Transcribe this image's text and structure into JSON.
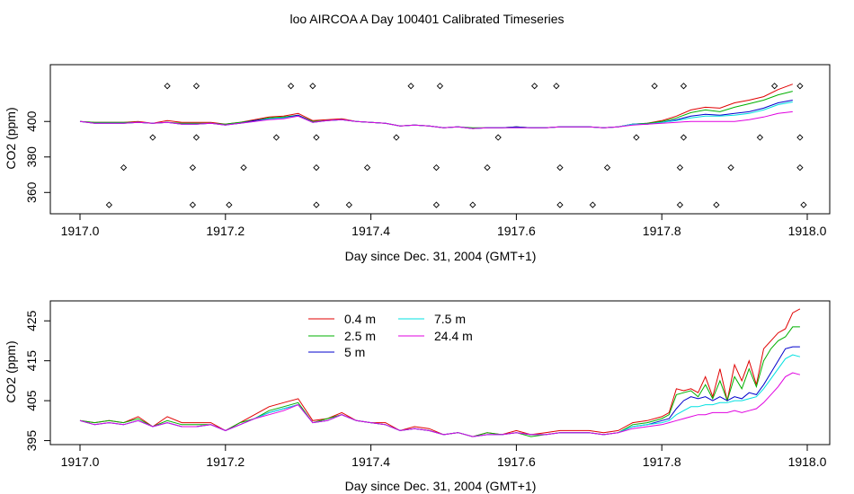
{
  "title": "loo AIRCOA A  Day 100401  Calibrated Timeseries",
  "series_colors": {
    "0.4 m": "#e00000",
    "2.5 m": "#00b000",
    "5 m": "#0000cc",
    "7.5 m": "#00e0e0",
    "24.4 m": "#e000e0"
  },
  "chart_data": [
    {
      "type": "line",
      "title": "",
      "xlabel": "Day since Dec. 31, 2004 (GMT+1)",
      "ylabel": "CO2 (ppm)",
      "xlim": [
        1917.0,
        1918.0
      ],
      "ylim": [
        348,
        432
      ],
      "x_ticks": [
        "1917.0",
        "1917.2",
        "1917.4",
        "1917.6",
        "1917.8",
        "1918.0"
      ],
      "y_ticks": [
        "360",
        "380",
        "400"
      ],
      "grid": false,
      "x": [
        1917.0,
        1917.02,
        1917.04,
        1917.06,
        1917.08,
        1917.1,
        1917.12,
        1917.14,
        1917.16,
        1917.18,
        1917.2,
        1917.22,
        1917.24,
        1917.26,
        1917.28,
        1917.3,
        1917.32,
        1917.34,
        1917.36,
        1917.38,
        1917.4,
        1917.42,
        1917.44,
        1917.46,
        1917.48,
        1917.5,
        1917.52,
        1917.54,
        1917.56,
        1917.58,
        1917.6,
        1917.62,
        1917.64,
        1917.66,
        1917.68,
        1917.7,
        1917.72,
        1917.74,
        1917.76,
        1917.78,
        1917.8,
        1917.82,
        1917.84,
        1917.86,
        1917.88,
        1917.9,
        1917.92,
        1917.94,
        1917.96,
        1917.98
      ],
      "series": [
        {
          "name": "0.4 m",
          "values": [
            400,
            399.5,
            399.5,
            399.5,
            400,
            399,
            400.5,
            399.5,
            399.5,
            399.5,
            398.5,
            399.5,
            401,
            402.5,
            403,
            404.5,
            400.5,
            401,
            401.5,
            400,
            399.5,
            399,
            397.5,
            398,
            397.5,
            396.5,
            397,
            396,
            396.5,
            396.5,
            397,
            396.5,
            396.5,
            397,
            397,
            397,
            396.5,
            397,
            398.5,
            399,
            400.5,
            403,
            406.5,
            408,
            407.5,
            410.5,
            412,
            414,
            418,
            421
          ]
        },
        {
          "name": "2.5 m",
          "values": [
            400,
            399.5,
            399.5,
            399.5,
            399.5,
            399,
            399.5,
            399,
            399,
            399,
            398.5,
            399.5,
            400.5,
            402,
            402.5,
            403.5,
            400,
            400.5,
            401,
            400,
            399.5,
            399,
            397.5,
            398,
            397.5,
            396.5,
            397,
            396.5,
            396.5,
            396.5,
            397,
            396.5,
            396.5,
            397,
            397,
            397,
            396.5,
            397,
            398.5,
            399,
            400,
            402,
            405,
            406.5,
            405.5,
            408,
            410,
            412,
            415,
            417
          ]
        },
        {
          "name": "5 m",
          "values": [
            400,
            399,
            399,
            399,
            399.5,
            399,
            399.5,
            398.5,
            398.5,
            399,
            398,
            399,
            400.5,
            401.5,
            402,
            403.5,
            399.5,
            400.5,
            401,
            400,
            399.5,
            399,
            397.5,
            398,
            397.5,
            396.5,
            397,
            396,
            396.5,
            396.5,
            397,
            396.5,
            396.5,
            397,
            397,
            397,
            396.5,
            397,
            398.5,
            398.5,
            399.5,
            401,
            403,
            404,
            403.5,
            404.5,
            405.5,
            407.5,
            410.5,
            412
          ]
        },
        {
          "name": "7.5 m",
          "values": [
            400,
            399,
            399,
            399,
            399.5,
            399,
            399.5,
            398.5,
            398.5,
            399,
            398,
            399,
            400,
            401.5,
            402,
            403,
            399.5,
            400.5,
            401,
            400,
            399.5,
            399,
            397.5,
            398,
            397.5,
            396.5,
            397,
            396,
            396.5,
            396.5,
            396.5,
            396.5,
            396.5,
            397,
            397,
            397,
            396.5,
            397,
            398.5,
            398.5,
            399.5,
            400.5,
            402,
            403,
            403,
            403.5,
            404.5,
            406.5,
            409.5,
            411
          ]
        },
        {
          "name": "24.4 m",
          "values": [
            400,
            399,
            399,
            399,
            399.5,
            399,
            399.5,
            398.5,
            398.5,
            399,
            398,
            399,
            400,
            401,
            401.5,
            403,
            399.5,
            400.5,
            401,
            400,
            399.5,
            399,
            397.5,
            398,
            397.5,
            396.5,
            397,
            396,
            396.5,
            396.5,
            396.5,
            396.5,
            396.5,
            397,
            397,
            397,
            396.5,
            397,
            398,
            398.5,
            399,
            399.5,
            400,
            400,
            400,
            400,
            401,
            402.5,
            404.5,
            405.5
          ]
        }
      ],
      "outlier_points": [
        [
          1917.04,
          353
        ],
        [
          1917.06,
          374
        ],
        [
          1917.1,
          391
        ],
        [
          1917.12,
          420
        ],
        [
          1917.155,
          353
        ],
        [
          1917.155,
          374
        ],
        [
          1917.16,
          391
        ],
        [
          1917.16,
          420
        ],
        [
          1917.205,
          353
        ],
        [
          1917.225,
          374
        ],
        [
          1917.27,
          391
        ],
        [
          1917.29,
          420
        ],
        [
          1917.32,
          420
        ],
        [
          1917.325,
          374
        ],
        [
          1917.325,
          353
        ],
        [
          1917.325,
          391
        ],
        [
          1917.37,
          353
        ],
        [
          1917.395,
          374
        ],
        [
          1917.435,
          391
        ],
        [
          1917.455,
          420
        ],
        [
          1917.49,
          353
        ],
        [
          1917.49,
          374
        ],
        [
          1917.495,
          420
        ],
        [
          1917.54,
          353
        ],
        [
          1917.56,
          374
        ],
        [
          1917.575,
          391
        ],
        [
          1917.625,
          420
        ],
        [
          1917.655,
          420
        ],
        [
          1917.66,
          374
        ],
        [
          1917.66,
          353
        ],
        [
          1917.705,
          353
        ],
        [
          1917.725,
          374
        ],
        [
          1917.765,
          391
        ],
        [
          1917.79,
          420
        ],
        [
          1917.825,
          353
        ],
        [
          1917.825,
          374
        ],
        [
          1917.83,
          391
        ],
        [
          1917.83,
          420
        ],
        [
          1917.875,
          353
        ],
        [
          1917.895,
          374
        ],
        [
          1917.935,
          391
        ],
        [
          1917.955,
          420
        ],
        [
          1917.99,
          420
        ],
        [
          1917.99,
          391
        ],
        [
          1917.99,
          374
        ],
        [
          1917.995,
          353
        ]
      ]
    },
    {
      "type": "line",
      "title": "",
      "xlabel": "Day since Dec. 31, 2004 (GMT+1)",
      "ylabel": "CO2 (ppm)",
      "xlim": [
        1917.0,
        1918.0
      ],
      "ylim": [
        394,
        430
      ],
      "x_ticks": [
        "1917.0",
        "1917.2",
        "1917.4",
        "1917.6",
        "1917.8",
        "1918.0"
      ],
      "y_ticks": [
        "395",
        "405",
        "415",
        "425"
      ],
      "grid": false,
      "legend": "top-left, two columns",
      "legend_entries": [
        "0.4 m",
        "2.5 m",
        "5 m",
        "7.5 m",
        "24.4 m"
      ],
      "x": [
        1917.0,
        1917.02,
        1917.04,
        1917.06,
        1917.08,
        1917.1,
        1917.12,
        1917.14,
        1917.16,
        1917.18,
        1917.2,
        1917.22,
        1917.24,
        1917.26,
        1917.28,
        1917.3,
        1917.32,
        1917.34,
        1917.36,
        1917.38,
        1917.4,
        1917.42,
        1917.44,
        1917.46,
        1917.48,
        1917.5,
        1917.52,
        1917.54,
        1917.56,
        1917.58,
        1917.6,
        1917.62,
        1917.64,
        1917.66,
        1917.68,
        1917.7,
        1917.72,
        1917.74,
        1917.76,
        1917.78,
        1917.8,
        1917.81,
        1917.82,
        1917.83,
        1917.84,
        1917.85,
        1917.86,
        1917.87,
        1917.88,
        1917.89,
        1917.9,
        1917.91,
        1917.92,
        1917.93,
        1917.94,
        1917.95,
        1917.96,
        1917.97,
        1917.98,
        1917.99
      ],
      "series": [
        {
          "name": "0.4 m",
          "values": [
            400,
            399.5,
            400,
            399.5,
            401,
            398.5,
            401,
            399.5,
            399.5,
            399.5,
            397.5,
            399.5,
            401.5,
            403.5,
            404.5,
            405.5,
            400,
            400.5,
            402,
            400,
            399.5,
            399.5,
            397.5,
            398.5,
            398,
            396.5,
            397,
            396,
            397,
            396.5,
            397.5,
            396.5,
            397,
            397.5,
            397.5,
            397.5,
            397,
            397.5,
            399.5,
            400,
            401,
            402,
            408,
            407.5,
            408,
            407,
            411,
            406,
            413,
            405,
            414,
            410,
            415,
            409,
            418,
            420,
            422,
            423,
            427,
            428
          ]
        },
        {
          "name": "2.5 m",
          "values": [
            400,
            399.5,
            400,
            399.5,
            400.5,
            398.5,
            400,
            399,
            399,
            399,
            397.5,
            399.5,
            400.5,
            402.5,
            403.5,
            404.5,
            399.5,
            400.5,
            401.5,
            400,
            399.5,
            399,
            397.5,
            398,
            397.5,
            396.5,
            397,
            396,
            397,
            396.5,
            397,
            396,
            396.5,
            397,
            397,
            397,
            396.5,
            397,
            399,
            399.5,
            400.5,
            401.5,
            406.5,
            407,
            407.5,
            406,
            409,
            405.5,
            410,
            405,
            411,
            408,
            413,
            408.5,
            415,
            418,
            420,
            421,
            423.5,
            423.5
          ]
        },
        {
          "name": "5 m",
          "values": [
            400,
            399,
            399.5,
            399,
            400,
            398.5,
            399.5,
            398.5,
            398.5,
            399,
            397.5,
            399,
            400.5,
            402,
            403,
            404,
            399.5,
            400,
            401.5,
            400,
            399.5,
            399,
            397.5,
            398,
            397.5,
            396.5,
            397,
            396,
            396.5,
            396.5,
            397,
            396.5,
            396.5,
            397,
            397,
            397,
            396.5,
            397,
            398.5,
            399,
            400,
            400.5,
            403,
            405,
            406,
            405.5,
            406,
            405,
            406,
            405,
            406,
            405.5,
            407,
            406.5,
            409,
            412,
            415,
            418,
            418.5,
            418.5
          ]
        },
        {
          "name": "7.5 m",
          "values": [
            400,
            399,
            399.5,
            399,
            400,
            398.5,
            399.5,
            398.5,
            398.5,
            399,
            397.5,
            399,
            400.5,
            402,
            403,
            404,
            399.5,
            400,
            401.5,
            400,
            399.5,
            399,
            397.5,
            398,
            397.5,
            396.5,
            397,
            396,
            396.5,
            396.5,
            397,
            396.5,
            396.5,
            397,
            397,
            397,
            396.5,
            397,
            398.5,
            399,
            399.5,
            400,
            401.5,
            402.5,
            403.5,
            403.5,
            404,
            404,
            404.5,
            404.5,
            405,
            405,
            405.5,
            406,
            408,
            410.5,
            413,
            415.5,
            416.5,
            416
          ]
        },
        {
          "name": "24.4 m",
          "values": [
            400,
            399,
            399.5,
            399,
            400,
            398.5,
            399.5,
            398.5,
            398.5,
            399,
            397.5,
            399,
            400.5,
            401.5,
            402.5,
            404,
            399.5,
            400,
            401.5,
            400,
            399.5,
            399,
            397.5,
            398,
            397.5,
            396.5,
            397,
            396,
            396.5,
            396.5,
            397,
            396.5,
            396.5,
            397,
            397,
            397,
            396.5,
            397,
            398,
            398.5,
            399,
            399.5,
            400,
            400.5,
            401,
            401.5,
            401.5,
            402,
            402,
            402,
            402.5,
            402,
            402.5,
            403,
            404.5,
            406.5,
            408.5,
            411,
            412,
            411.5
          ]
        }
      ]
    }
  ]
}
